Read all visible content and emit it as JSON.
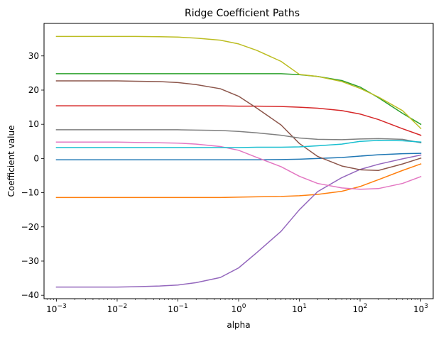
{
  "chart_data": {
    "type": "line",
    "title": "Ridge Coefficient Paths",
    "xlabel": "alpha",
    "ylabel": "Coefficient value",
    "xscale": "log",
    "xlim": [
      0.000625,
      1600
    ],
    "ylim": [
      -41,
      39.5
    ],
    "grid": false,
    "legend": "none",
    "x_ticks": [
      {
        "value": 0.001,
        "base": "10",
        "exp": "−3"
      },
      {
        "value": 0.01,
        "base": "10",
        "exp": "−2"
      },
      {
        "value": 0.1,
        "base": "10",
        "exp": "−1"
      },
      {
        "value": 1,
        "base": "10",
        "exp": "0"
      },
      {
        "value": 10,
        "base": "10",
        "exp": "1"
      },
      {
        "value": 100,
        "base": "10",
        "exp": "2"
      },
      {
        "value": 1000,
        "base": "10",
        "exp": "3"
      }
    ],
    "y_ticks": [
      {
        "value": -40,
        "label": "−40"
      },
      {
        "value": -30,
        "label": "−30"
      },
      {
        "value": -20,
        "label": "−20"
      },
      {
        "value": -10,
        "label": "−10"
      },
      {
        "value": 0,
        "label": "0"
      },
      {
        "value": 10,
        "label": "10"
      },
      {
        "value": 20,
        "label": "20"
      },
      {
        "value": 30,
        "label": "30"
      }
    ],
    "x": [
      0.001,
      0.002,
      0.005,
      0.01,
      0.02,
      0.05,
      0.1,
      0.2,
      0.5,
      1,
      2,
      5,
      10,
      20,
      50,
      100,
      200,
      500,
      1000
    ],
    "series": [
      {
        "color": "#1f77b4",
        "values": [
          -0.4,
          -0.4,
          -0.4,
          -0.4,
          -0.4,
          -0.4,
          -0.4,
          -0.4,
          -0.4,
          -0.4,
          -0.4,
          -0.3,
          -0.2,
          0.0,
          0.3,
          0.7,
          1.1,
          1.4,
          1.5
        ]
      },
      {
        "color": "#ff7f0e",
        "values": [
          -11.4,
          -11.4,
          -11.4,
          -11.4,
          -11.4,
          -11.4,
          -11.4,
          -11.4,
          -11.4,
          -11.3,
          -11.2,
          -11.1,
          -10.9,
          -10.5,
          -9.6,
          -8.2,
          -6.2,
          -3.5,
          -1.6
        ]
      },
      {
        "color": "#2ca02c",
        "values": [
          24.8,
          24.8,
          24.8,
          24.8,
          24.8,
          24.8,
          24.8,
          24.8,
          24.8,
          24.8,
          24.8,
          24.8,
          24.5,
          24.0,
          22.8,
          20.9,
          17.8,
          13.2,
          10.0
        ]
      },
      {
        "color": "#d62728",
        "values": [
          15.4,
          15.4,
          15.4,
          15.4,
          15.4,
          15.4,
          15.4,
          15.4,
          15.4,
          15.3,
          15.3,
          15.2,
          15.0,
          14.7,
          14.0,
          13.0,
          11.4,
          8.7,
          6.8
        ]
      },
      {
        "color": "#9467bd",
        "values": [
          -37.6,
          -37.6,
          -37.6,
          -37.6,
          -37.5,
          -37.3,
          -37.0,
          -36.3,
          -34.8,
          -32.0,
          -27.5,
          -21.3,
          -15.0,
          -9.7,
          -5.6,
          -3.2,
          -1.7,
          -0.1,
          1.0
        ]
      },
      {
        "color": "#8c564b",
        "values": [
          22.7,
          22.7,
          22.7,
          22.7,
          22.6,
          22.5,
          22.2,
          21.6,
          20.4,
          18.2,
          14.7,
          9.8,
          4.4,
          0.6,
          -2.2,
          -3.3,
          -3.5,
          -1.6,
          0.1
        ]
      },
      {
        "color": "#e377c2",
        "values": [
          4.8,
          4.8,
          4.8,
          4.8,
          4.7,
          4.6,
          4.5,
          4.2,
          3.5,
          2.4,
          0.3,
          -2.4,
          -5.2,
          -7.3,
          -8.6,
          -9.0,
          -8.8,
          -7.3,
          -5.3
        ]
      },
      {
        "color": "#7f7f7f",
        "values": [
          8.4,
          8.4,
          8.4,
          8.4,
          8.4,
          8.4,
          8.4,
          8.3,
          8.2,
          7.9,
          7.5,
          6.8,
          6.0,
          5.6,
          5.5,
          5.7,
          5.8,
          5.6,
          4.6
        ]
      },
      {
        "color": "#bcbd22",
        "values": [
          35.7,
          35.7,
          35.7,
          35.7,
          35.7,
          35.6,
          35.5,
          35.2,
          34.6,
          33.5,
          31.6,
          28.4,
          24.6,
          24.0,
          22.5,
          20.5,
          18.0,
          14.0,
          8.8
        ]
      },
      {
        "color": "#17becf",
        "values": [
          3.2,
          3.2,
          3.2,
          3.2,
          3.2,
          3.2,
          3.2,
          3.2,
          3.2,
          3.2,
          3.3,
          3.3,
          3.4,
          3.7,
          4.2,
          5.0,
          5.3,
          5.2,
          4.8
        ]
      }
    ]
  }
}
